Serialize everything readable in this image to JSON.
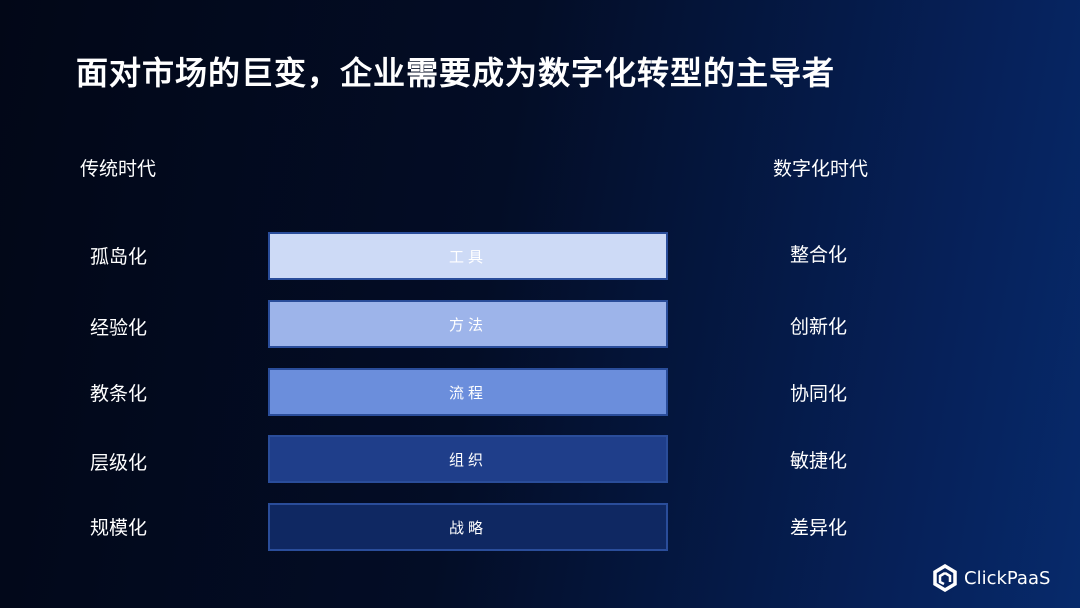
{
  "title": "面对市场的巨变，企业需要成为数字化转型的主导者",
  "left_header": "传统时代",
  "right_header": "数字化时代",
  "rows": [
    {
      "left": "孤岛化",
      "bar": "工具",
      "right": "整合化",
      "color": "#cddaf6"
    },
    {
      "left": "经验化",
      "bar": "方法",
      "right": "创新化",
      "color": "#9db4ea"
    },
    {
      "left": "教条化",
      "bar": "流程",
      "right": "协同化",
      "color": "#6b8edc"
    },
    {
      "left": "层级化",
      "bar": "组织",
      "right": "敏捷化",
      "color": "#1f3e8a"
    },
    {
      "left": "规模化",
      "bar": "战略",
      "right": "差异化",
      "color": "#0f2862"
    }
  ],
  "logo": {
    "text": "ClickPaaS",
    "icon": "clickpaas-hexagon-icon"
  }
}
